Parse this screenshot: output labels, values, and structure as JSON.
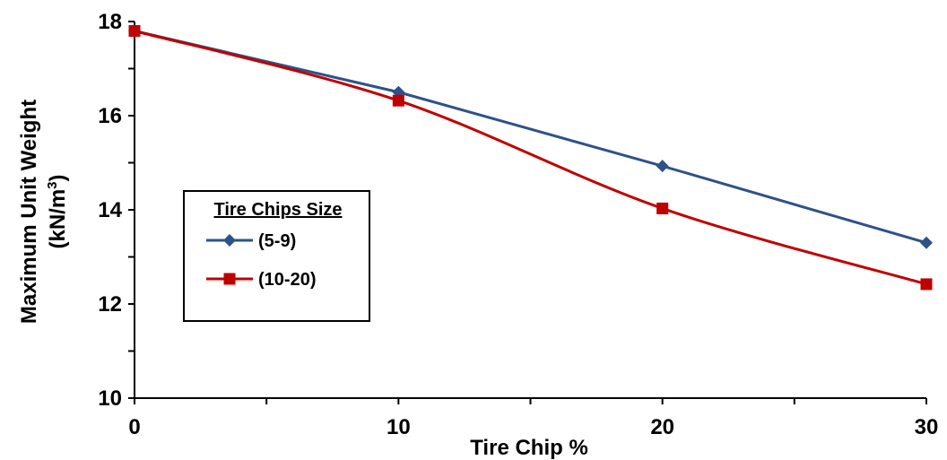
{
  "chart_data": {
    "type": "line",
    "xlabel": "Tire Chip %",
    "ylabel_line1": "Maximum Unit Weight",
    "ylabel_line2_prefix": "(kN/m",
    "ylabel_line2_sup": "3",
    "ylabel_line2_suffix": ")",
    "xlim": [
      0,
      30
    ],
    "ylim": [
      10,
      18
    ],
    "x_ticks": [
      0,
      10,
      20,
      30
    ],
    "y_ticks": [
      10,
      12,
      14,
      16,
      18
    ],
    "grid": false,
    "legend": {
      "title": "Tire Chips Size",
      "placement": "center-left"
    },
    "series": [
      {
        "name": "(5-9)",
        "color": "#2E5288",
        "marker": "diamond",
        "x": [
          0,
          10,
          20,
          30
        ],
        "values": [
          17.8,
          16.5,
          14.93,
          13.3
        ],
        "smooth": false
      },
      {
        "name": "(10-20)",
        "color": "#C00000",
        "marker": "square",
        "x": [
          0,
          10,
          20,
          30
        ],
        "values": [
          17.8,
          16.32,
          14.03,
          12.42
        ],
        "smooth": true
      }
    ]
  }
}
